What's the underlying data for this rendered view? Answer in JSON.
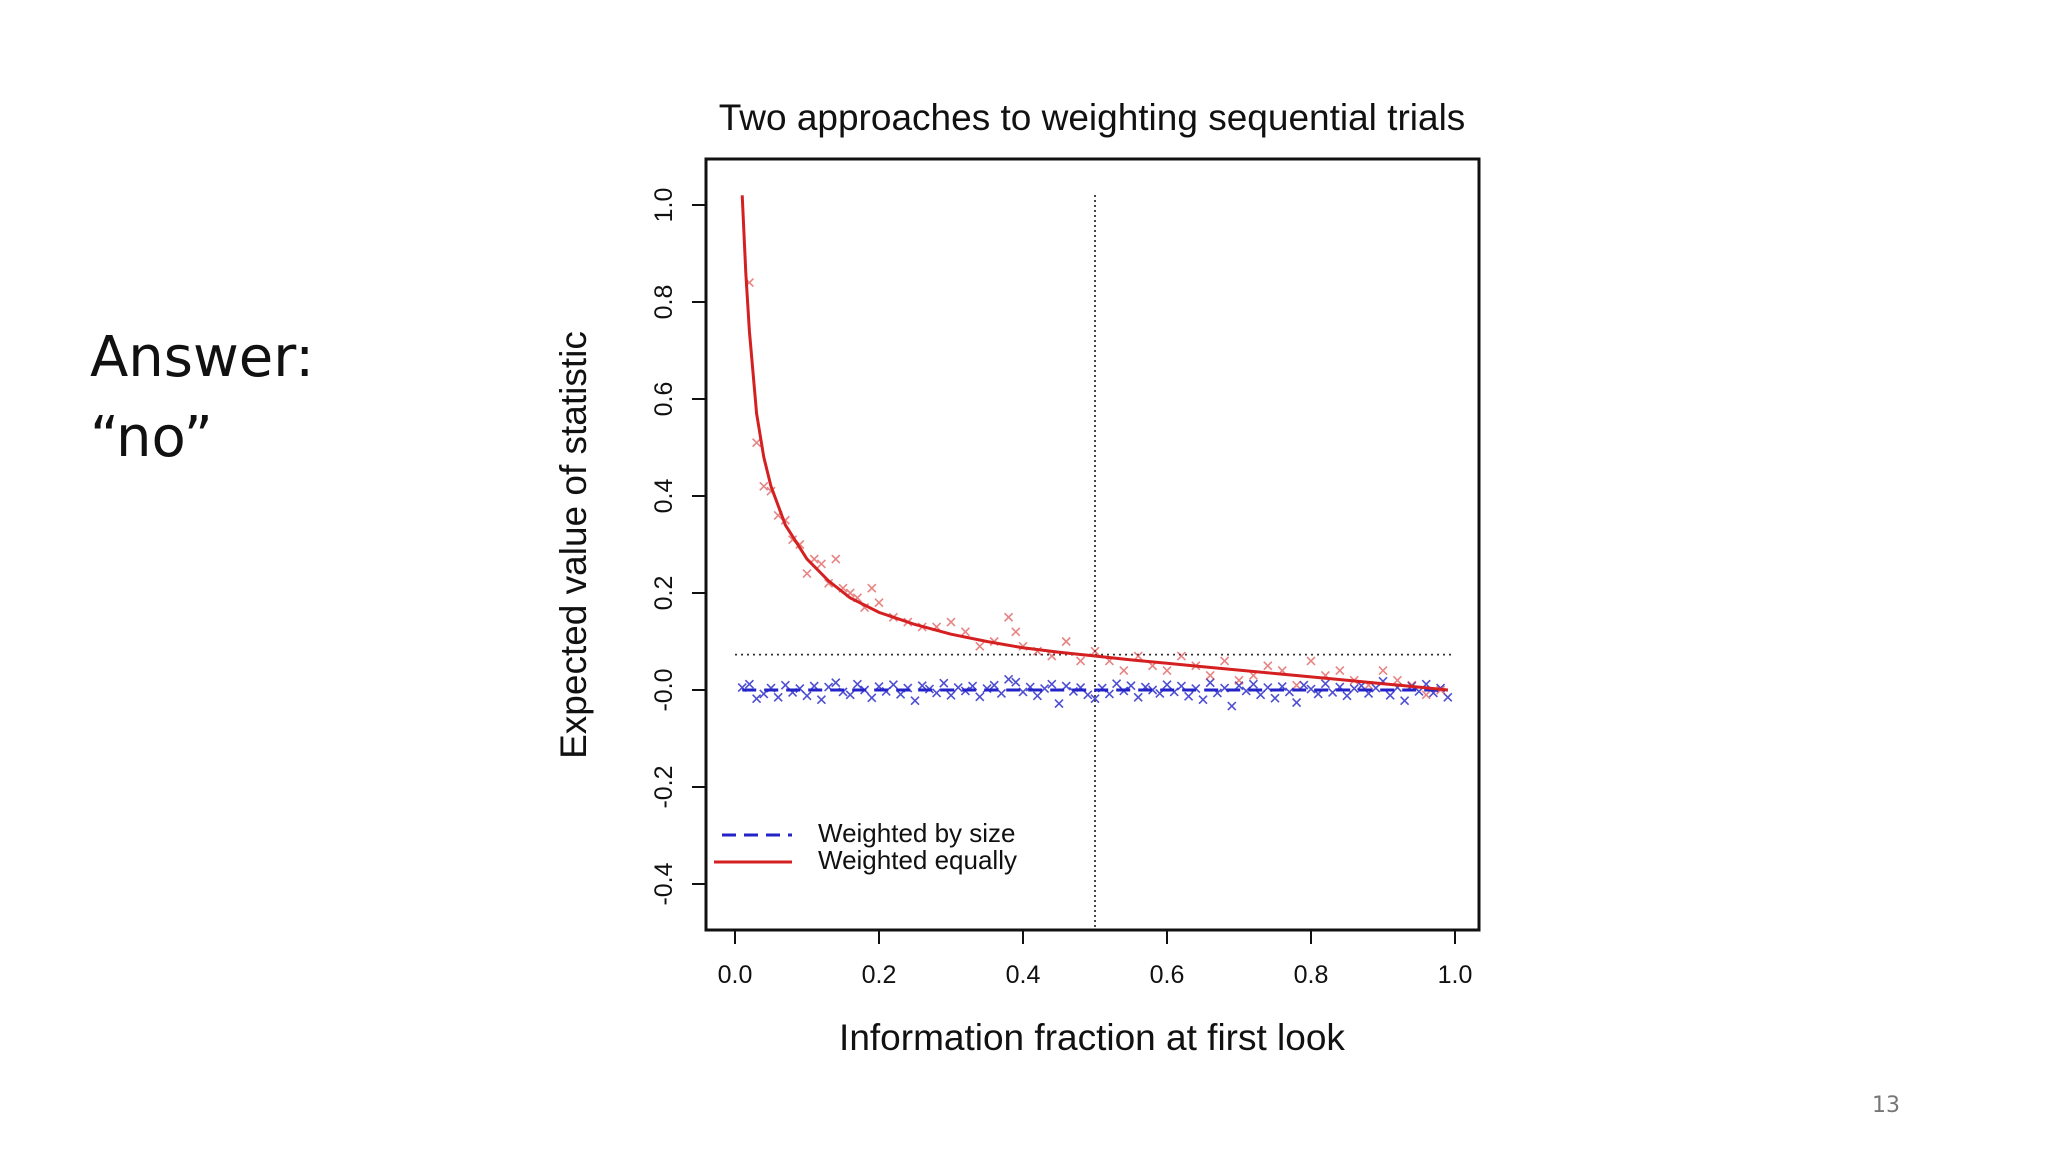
{
  "slide": {
    "answer_lines": [
      "Answer:",
      "“no”"
    ],
    "page_number": "13"
  },
  "chart_data": {
    "type": "line",
    "title": "Two approaches to weighting sequential trials",
    "xlabel": "Information fraction at first look",
    "ylabel": "Expected value of statistic",
    "xlim": [
      0.0,
      1.0
    ],
    "ylim": [
      -0.4,
      1.0
    ],
    "x_ticks": [
      "0.0",
      "0.2",
      "0.4",
      "0.6",
      "0.8",
      "1.0"
    ],
    "y_ticks": [
      "-0.4",
      "-0.2",
      "-0.0",
      "0.2",
      "0.4",
      "0.6",
      "0.8",
      "1.0"
    ],
    "grid": false,
    "legend_position": "bottom-left",
    "reference_lines": {
      "vertical_x": 0.5,
      "horizontal_y": 0.073
    },
    "series": [
      {
        "name": "Weighted by size",
        "style": "dashed",
        "color": "#2323c8",
        "x": [
          0.01,
          0.05,
          0.1,
          0.2,
          0.3,
          0.4,
          0.5,
          0.6,
          0.7,
          0.8,
          0.9,
          0.99
        ],
        "y": [
          0.0,
          0.0,
          0.0,
          0.0,
          0.0,
          0.0,
          0.0,
          0.0,
          0.0,
          0.0,
          0.0,
          0.0
        ],
        "points_x": [
          0.01,
          0.02,
          0.03,
          0.04,
          0.05,
          0.06,
          0.07,
          0.08,
          0.09,
          0.1,
          0.11,
          0.12,
          0.13,
          0.14,
          0.15,
          0.16,
          0.17,
          0.18,
          0.19,
          0.2,
          0.21,
          0.22,
          0.23,
          0.24,
          0.25,
          0.26,
          0.27,
          0.28,
          0.29,
          0.3,
          0.31,
          0.32,
          0.33,
          0.34,
          0.35,
          0.36,
          0.37,
          0.38,
          0.39,
          0.4,
          0.41,
          0.42,
          0.43,
          0.44,
          0.45,
          0.46,
          0.47,
          0.48,
          0.49,
          0.5,
          0.51,
          0.52,
          0.53,
          0.54,
          0.55,
          0.56,
          0.57,
          0.58,
          0.59,
          0.6,
          0.61,
          0.62,
          0.63,
          0.64,
          0.65,
          0.66,
          0.67,
          0.68,
          0.69,
          0.7,
          0.71,
          0.72,
          0.73,
          0.74,
          0.75,
          0.76,
          0.77,
          0.78,
          0.79,
          0.8,
          0.81,
          0.82,
          0.83,
          0.84,
          0.85,
          0.86,
          0.87,
          0.88,
          0.89,
          0.9,
          0.91,
          0.92,
          0.93,
          0.94,
          0.95,
          0.96,
          0.97,
          0.98,
          0.99
        ],
        "points_y": [
          0.005,
          0.012,
          -0.018,
          -0.008,
          0.004,
          -0.015,
          0.01,
          -0.005,
          0.003,
          -0.012,
          0.008,
          -0.02,
          0.006,
          0.015,
          -0.004,
          -0.01,
          0.012,
          0.0,
          -0.016,
          0.007,
          -0.003,
          0.011,
          -0.009,
          0.004,
          -0.022,
          0.009,
          0.002,
          -0.006,
          0.014,
          -0.011,
          0.005,
          -0.002,
          0.008,
          -0.014,
          0.003,
          0.01,
          -0.007,
          0.022,
          0.016,
          -0.004,
          0.006,
          -0.012,
          0.003,
          0.012,
          -0.028,
          0.008,
          -0.003,
          0.005,
          -0.01,
          -0.018,
          0.004,
          -0.008,
          0.013,
          -0.002,
          0.009,
          -0.015,
          0.006,
          0.0,
          -0.007,
          0.011,
          -0.004,
          0.008,
          -0.013,
          0.003,
          -0.02,
          0.015,
          -0.006,
          0.004,
          -0.033,
          0.009,
          -0.002,
          0.012,
          -0.01,
          0.005,
          -0.017,
          0.007,
          -0.004,
          -0.026,
          0.01,
          0.002,
          -0.008,
          0.013,
          -0.005,
          0.006,
          -0.012,
          0.003,
          0.009,
          -0.007,
          0.004,
          0.018,
          -0.011,
          0.005,
          -0.022,
          0.008,
          -0.003,
          0.012,
          -0.006,
          0.004,
          -0.015
        ]
      },
      {
        "name": "Weighted equally",
        "style": "solid",
        "color": "#d42020",
        "x": [
          0.01,
          0.015,
          0.02,
          0.03,
          0.04,
          0.05,
          0.07,
          0.1,
          0.13,
          0.16,
          0.2,
          0.25,
          0.3,
          0.35,
          0.4,
          0.45,
          0.5,
          0.55,
          0.6,
          0.65,
          0.7,
          0.75,
          0.8,
          0.85,
          0.9,
          0.95,
          0.99
        ],
        "y": [
          1.02,
          0.86,
          0.74,
          0.57,
          0.48,
          0.42,
          0.34,
          0.27,
          0.225,
          0.19,
          0.16,
          0.135,
          0.115,
          0.1,
          0.087,
          0.078,
          0.07,
          0.062,
          0.055,
          0.048,
          0.041,
          0.034,
          0.027,
          0.02,
          0.013,
          0.006,
          0.0
        ],
        "points_x": [
          0.02,
          0.03,
          0.04,
          0.05,
          0.06,
          0.07,
          0.08,
          0.09,
          0.1,
          0.11,
          0.12,
          0.13,
          0.14,
          0.15,
          0.16,
          0.17,
          0.18,
          0.19,
          0.2,
          0.22,
          0.24,
          0.26,
          0.28,
          0.3,
          0.32,
          0.34,
          0.36,
          0.38,
          0.39,
          0.4,
          0.42,
          0.44,
          0.46,
          0.48,
          0.5,
          0.52,
          0.54,
          0.56,
          0.58,
          0.6,
          0.62,
          0.64,
          0.66,
          0.68,
          0.7,
          0.72,
          0.74,
          0.76,
          0.78,
          0.8,
          0.82,
          0.84,
          0.86,
          0.88,
          0.9,
          0.92,
          0.94,
          0.96,
          0.98
        ],
        "points_y": [
          0.84,
          0.51,
          0.42,
          0.41,
          0.36,
          0.35,
          0.31,
          0.3,
          0.24,
          0.27,
          0.26,
          0.22,
          0.27,
          0.21,
          0.2,
          0.19,
          0.17,
          0.21,
          0.18,
          0.15,
          0.14,
          0.13,
          0.13,
          0.14,
          0.12,
          0.09,
          0.1,
          0.15,
          0.12,
          0.09,
          0.08,
          0.07,
          0.1,
          0.06,
          0.08,
          0.06,
          0.04,
          0.07,
          0.05,
          0.04,
          0.07,
          0.05,
          0.03,
          0.06,
          0.02,
          0.03,
          0.05,
          0.04,
          0.01,
          0.06,
          0.03,
          0.04,
          0.02,
          0.01,
          0.04,
          0.02,
          0.01,
          -0.01,
          0.0
        ]
      }
    ]
  }
}
